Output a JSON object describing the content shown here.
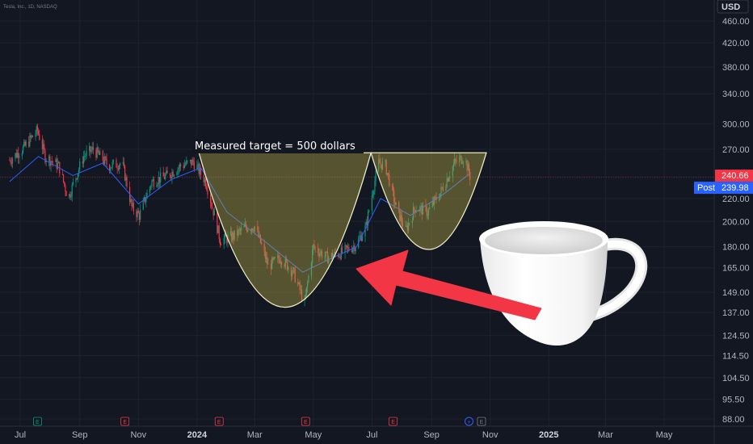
{
  "symbol_line": "Tesla, Inc., 1D, NASDAQ",
  "currency": "USD",
  "chart_data": {
    "type": "candlestick",
    "y_axis_scale": "log",
    "y_ticks": [
      "460.00",
      "420.00",
      "380.00",
      "340.00",
      "300.00",
      "270.00",
      "240.00",
      "220.00",
      "200.00",
      "180.00",
      "165.00",
      "149.00",
      "137.00",
      "124.50",
      "114.50",
      "104.50",
      "95.50",
      "88.00"
    ],
    "x_ticks": [
      {
        "label": "Jul",
        "date": "2023-07-01",
        "bold": false
      },
      {
        "label": "Sep",
        "date": "2023-09-01",
        "bold": false
      },
      {
        "label": "Nov",
        "date": "2023-11-01",
        "bold": false
      },
      {
        "label": "2024",
        "date": "2024-01-01",
        "bold": true
      },
      {
        "label": "Mar",
        "date": "2024-03-01",
        "bold": false
      },
      {
        "label": "May",
        "date": "2024-05-01",
        "bold": false
      },
      {
        "label": "Jul",
        "date": "2024-07-01",
        "bold": false
      },
      {
        "label": "Sep",
        "date": "2024-09-01",
        "bold": false
      },
      {
        "label": "Nov",
        "date": "2024-11-01",
        "bold": false
      },
      {
        "label": "2025",
        "date": "2025-01-01",
        "bold": true
      },
      {
        "label": "Mar",
        "date": "2025-03-01",
        "bold": false
      },
      {
        "label": "May",
        "date": "2025-05-01",
        "bold": false
      }
    ],
    "price_path": [
      [
        "2023-06-20",
        258
      ],
      [
        "2023-07-05",
        272
      ],
      [
        "2023-07-19",
        292
      ],
      [
        "2023-07-27",
        262
      ],
      [
        "2023-08-10",
        252
      ],
      [
        "2023-08-20",
        220
      ],
      [
        "2023-09-05",
        262
      ],
      [
        "2023-09-15",
        270
      ],
      [
        "2023-10-01",
        252
      ],
      [
        "2023-10-15",
        255
      ],
      [
        "2023-10-25",
        212
      ],
      [
        "2023-11-02",
        205
      ],
      [
        "2023-11-15",
        236
      ],
      [
        "2023-12-01",
        242
      ],
      [
        "2023-12-15",
        252
      ],
      [
        "2023-12-28",
        256
      ],
      [
        "2024-01-10",
        236
      ],
      [
        "2024-01-25",
        185
      ],
      [
        "2024-02-08",
        188
      ],
      [
        "2024-02-20",
        195
      ],
      [
        "2024-03-01",
        196
      ],
      [
        "2024-03-15",
        166
      ],
      [
        "2024-03-28",
        172
      ],
      [
        "2024-04-10",
        162
      ],
      [
        "2024-04-22",
        142
      ],
      [
        "2024-05-01",
        180
      ],
      [
        "2024-05-15",
        172
      ],
      [
        "2024-06-01",
        176
      ],
      [
        "2024-06-15",
        182
      ],
      [
        "2024-06-25",
        196
      ],
      [
        "2024-07-08",
        255
      ],
      [
        "2024-07-15",
        252
      ],
      [
        "2024-07-25",
        215
      ],
      [
        "2024-08-05",
        192
      ],
      [
        "2024-08-15",
        212
      ],
      [
        "2024-08-28",
        208
      ],
      [
        "2024-09-10",
        225
      ],
      [
        "2024-09-25",
        255
      ],
      [
        "2024-10-05",
        262
      ],
      [
        "2024-10-12",
        238
      ]
    ],
    "moving_average": [
      [
        "2023-06-20",
        236
      ],
      [
        "2023-07-20",
        262
      ],
      [
        "2023-08-25",
        242
      ],
      [
        "2023-09-25",
        255
      ],
      [
        "2023-11-01",
        215
      ],
      [
        "2023-12-05",
        238
      ],
      [
        "2024-01-05",
        250
      ],
      [
        "2024-02-01",
        208
      ],
      [
        "2024-03-10",
        185
      ],
      [
        "2024-04-20",
        162
      ],
      [
        "2024-05-15",
        170
      ],
      [
        "2024-06-15",
        180
      ],
      [
        "2024-07-10",
        220
      ],
      [
        "2024-08-10",
        205
      ],
      [
        "2024-09-15",
        225
      ],
      [
        "2024-10-12",
        245
      ]
    ],
    "price_labels": [
      {
        "value": "240.66",
        "price": 240.66,
        "color": "#f23645"
      },
      {
        "label": "Post",
        "value": "239.98",
        "price": 239.98,
        "color": "#2962ff"
      }
    ],
    "events": [
      {
        "letter": "E",
        "date": "2023-07-19",
        "color": "#089981"
      },
      {
        "letter": "E",
        "date": "2023-10-18",
        "color": "#f23645"
      },
      {
        "letter": "E",
        "date": "2024-01-24",
        "color": "#f23645"
      },
      {
        "letter": "E",
        "date": "2024-04-23",
        "color": "#f23645"
      },
      {
        "letter": "E",
        "date": "2024-07-23",
        "color": "#f23645"
      },
      {
        "letter": "+",
        "date": "2024-10-10",
        "color": "#2962ff"
      },
      {
        "letter": "E",
        "date": "2024-10-23",
        "color": "#787b86"
      }
    ],
    "annotations": {
      "target_text": "Measured target = 500 dollars",
      "cup": {
        "left_date": "2024-01-03",
        "right_date": "2024-06-30",
        "rim_price": 266,
        "bottom_price": 140
      },
      "handle": {
        "left_date": "2024-06-30",
        "right_date": "2024-10-28",
        "rim_price": 266,
        "bottom_price": 178
      }
    }
  }
}
